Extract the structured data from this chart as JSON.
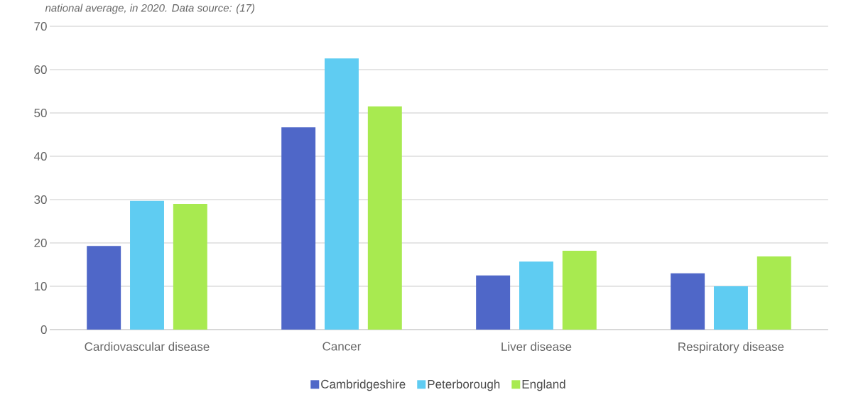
{
  "chart_data": {
    "type": "bar",
    "annotations": [
      "national average, in 2020. Data source: (17)"
    ],
    "categories": [
      "Cardiovascular disease",
      "Cancer",
      "Liver disease",
      "Respiratory disease"
    ],
    "series": [
      {
        "name": "Cambridgeshire",
        "color": "#4f67c8",
        "values": [
          19.3,
          46.7,
          12.5,
          13.0
        ]
      },
      {
        "name": "Peterborough",
        "color": "#5fccf2",
        "values": [
          29.7,
          62.6,
          15.7,
          10.0
        ]
      },
      {
        "name": "England",
        "color": "#a8ea50",
        "values": [
          29.0,
          51.5,
          18.2,
          16.9
        ]
      }
    ],
    "ylim": [
      0,
      70
    ],
    "yticks": [
      0,
      10,
      20,
      30,
      40,
      50,
      60,
      70
    ],
    "grid": "y",
    "legend": "bottom"
  }
}
